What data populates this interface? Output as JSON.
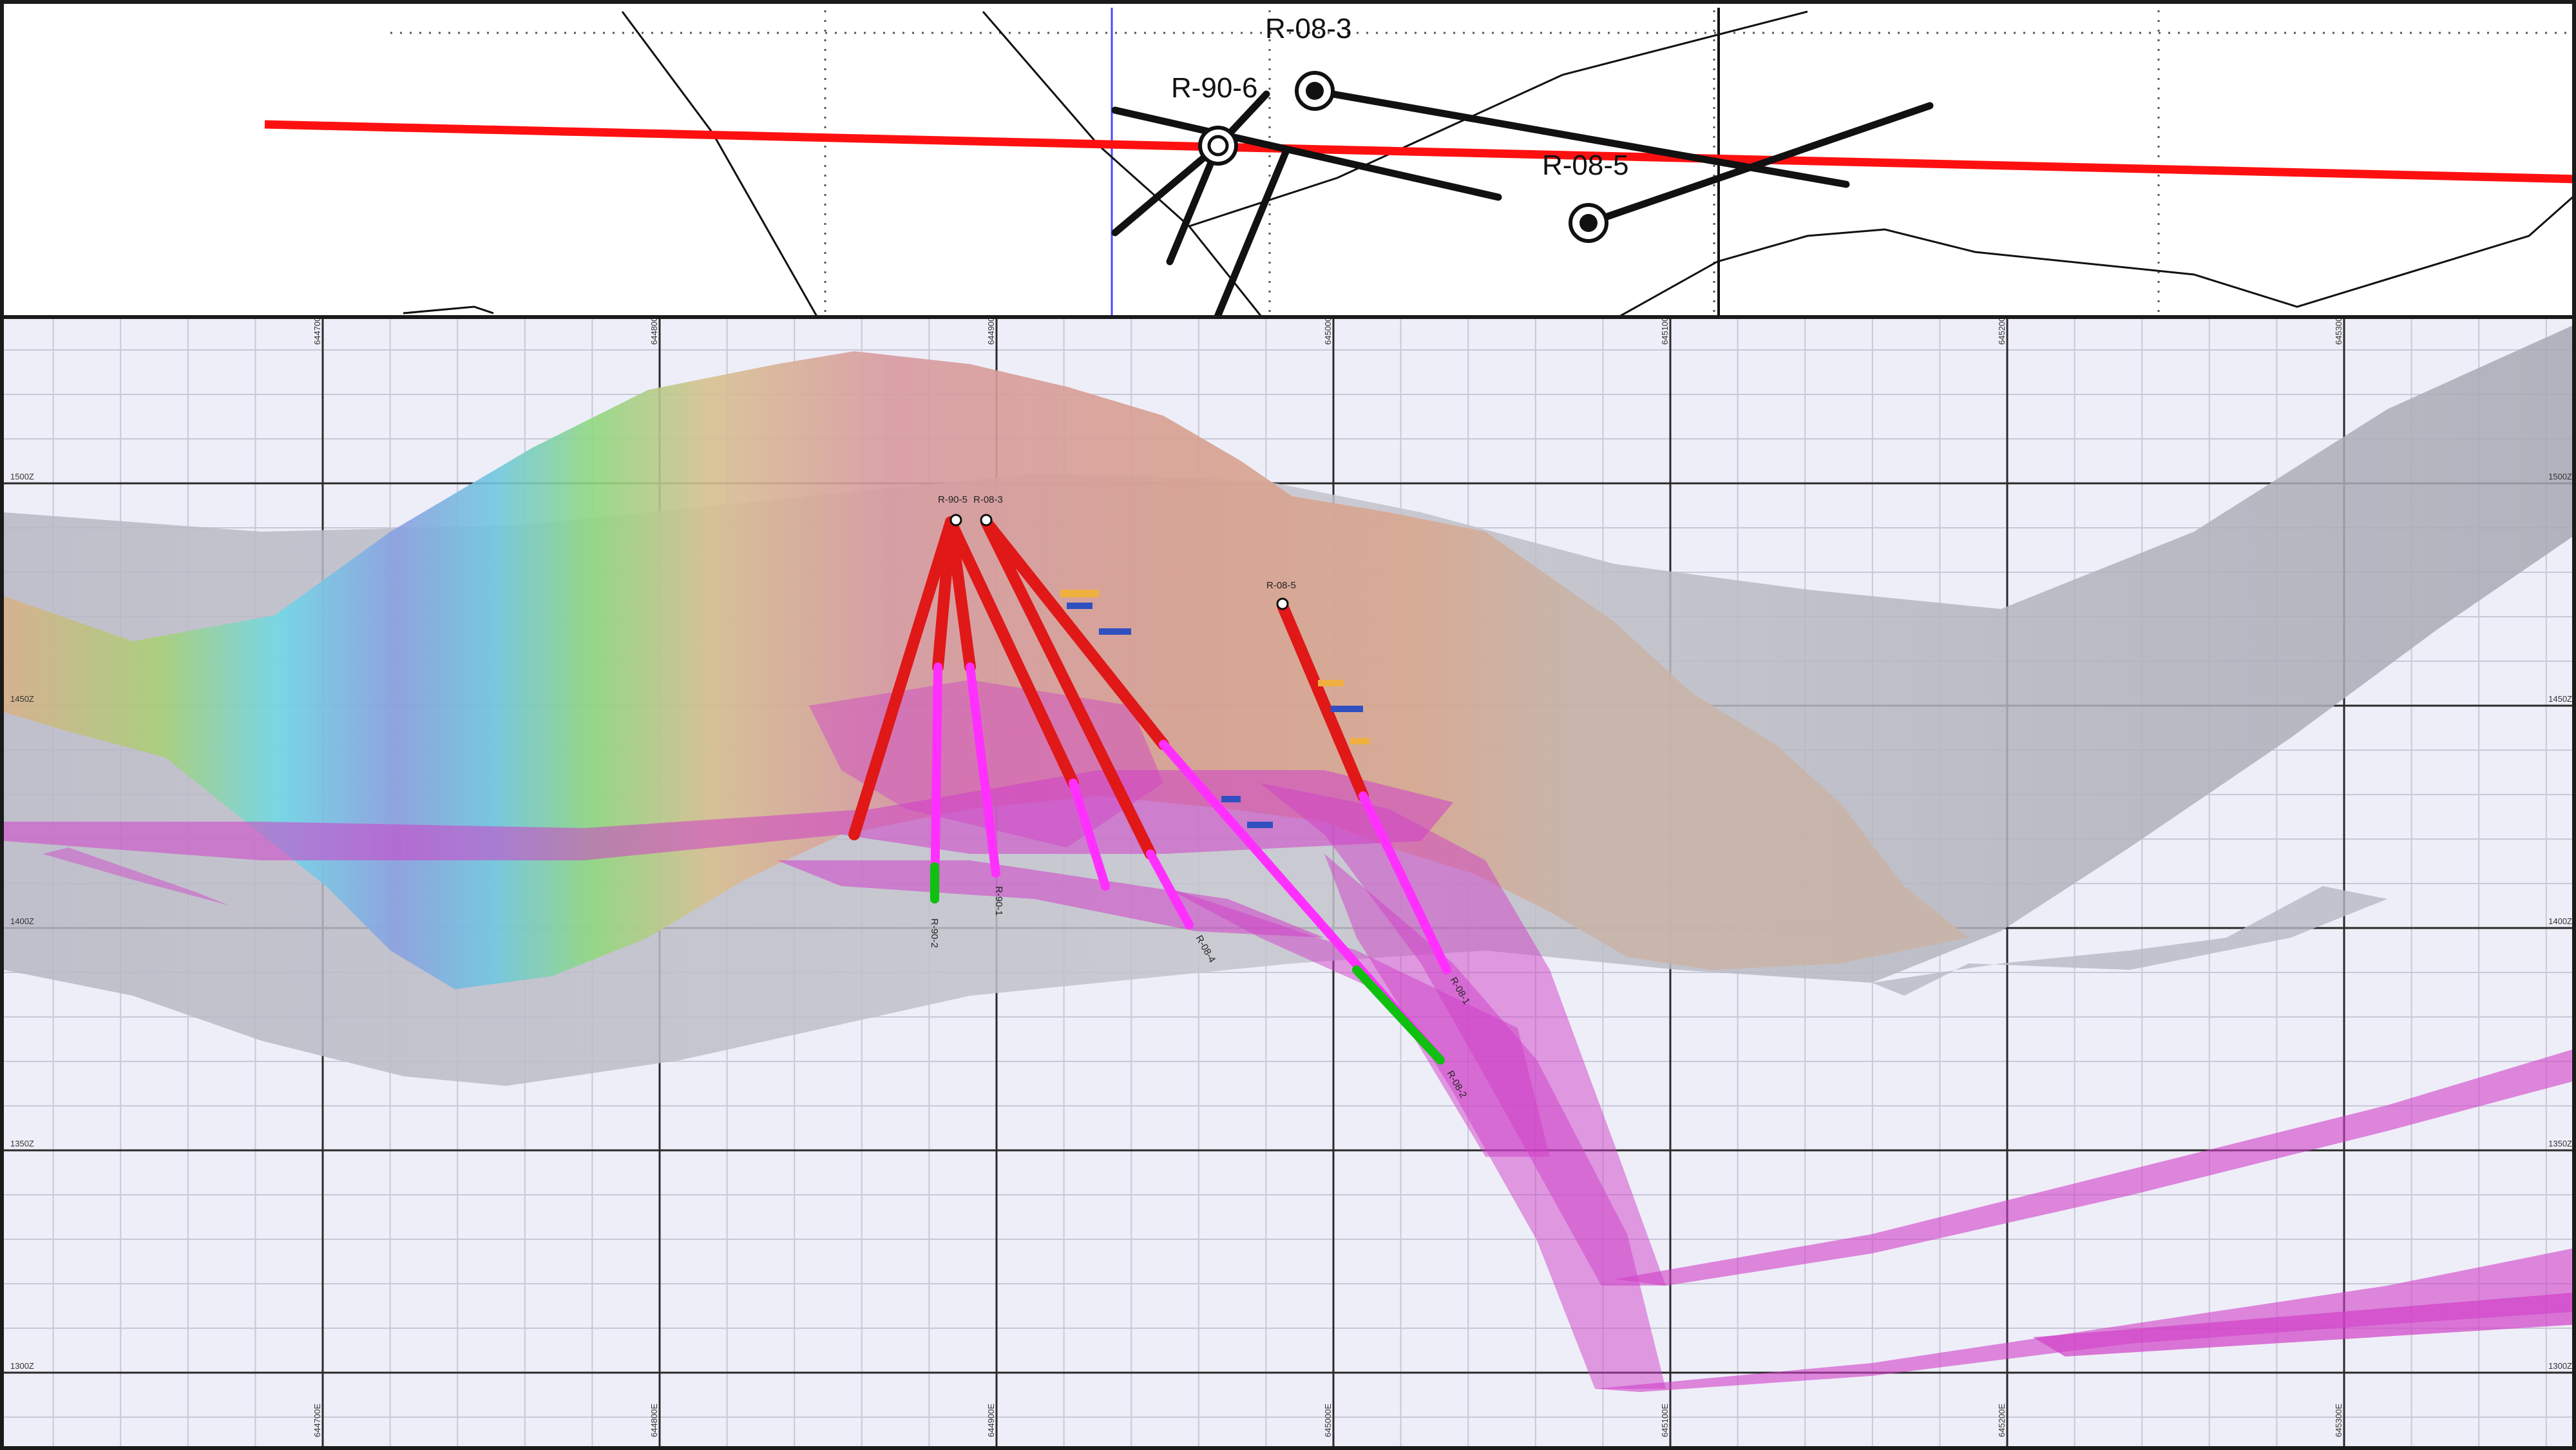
{
  "plan_view": {
    "drillholes": [
      {
        "id": "R-08-3",
        "label": "R-08-3"
      },
      {
        "id": "R-90-6",
        "label": "R-90-6"
      },
      {
        "id": "R-08-5",
        "label": "R-08-5"
      }
    ]
  },
  "section_view": {
    "easting_ticks": [
      "644700E",
      "644800E",
      "644900E",
      "645000E",
      "645100E",
      "645200E",
      "645300E"
    ],
    "elevation_ticks": [
      "1500Z",
      "1450Z",
      "1400Z",
      "1350Z",
      "1300Z"
    ],
    "collar_labels": {
      "left": "R-90-5",
      "right": "R-08-3",
      "far": "R-08-5"
    },
    "hole_end_labels": [
      "R-90-2",
      "R-90-1",
      "R-08-4",
      "R-08-2",
      "R-08-1"
    ]
  },
  "colors": {
    "section_line": "#ff1010",
    "trace": "#000000",
    "grid_major": "#2a2a2a",
    "grid_minor": "#c8c8d8",
    "vein_magenta": "#d040c8",
    "hole_red": "#e01818",
    "hole_magenta": "#ff30ff",
    "hole_green": "#10c010"
  }
}
